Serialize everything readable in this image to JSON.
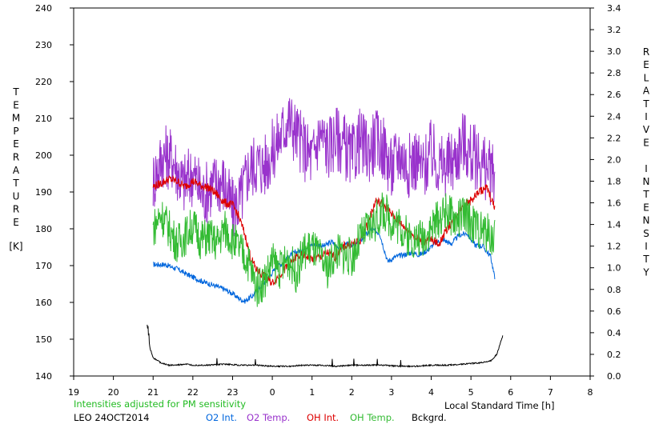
{
  "chart_data": {
    "type": "line",
    "left_axis": {
      "title": "TEMPERATURE",
      "unit": "[K]",
      "ylim": [
        140,
        240
      ],
      "ticks": [
        "140",
        "150",
        "160",
        "170",
        "180",
        "190",
        "200",
        "210",
        "220",
        "230",
        "240"
      ]
    },
    "right_axis": {
      "title": "RELATIVE INTENSITY",
      "ylim": [
        0.0,
        3.4
      ],
      "ticks": [
        "0.0",
        "0.2",
        "0.4",
        "0.6",
        "0.8",
        "1.0",
        "1.2",
        "1.4",
        "1.6",
        "1.8",
        "2.0",
        "2.2",
        "2.4",
        "2.6",
        "2.8",
        "3.0",
        "3.2",
        "3.4"
      ]
    },
    "x_axis": {
      "label": "Local Standard Time [h]",
      "ticks": [
        "19",
        "20",
        "21",
        "22",
        "23",
        "0",
        "1",
        "2",
        "3",
        "4",
        "5",
        "6",
        "7",
        "8"
      ]
    },
    "note": "Intensities adjusted for PM sensitivity",
    "station": "LEO 24OCT2014",
    "grid": false,
    "series": [
      {
        "name": "O2 Int.",
        "axis": "right",
        "color": "#0066dd",
        "x": [
          21.0,
          21.3,
          21.6,
          21.9,
          22.2,
          22.5,
          22.8,
          23.0,
          23.15,
          23.3,
          23.5,
          23.7,
          23.9,
          24.1,
          24.3,
          24.5,
          24.7,
          24.9,
          25.1,
          25.3,
          25.5,
          25.7,
          25.9,
          26.1,
          26.3,
          26.5,
          26.7,
          26.9,
          27.1,
          27.3,
          27.5,
          27.7,
          27.9,
          28.1,
          28.3,
          28.5,
          28.7,
          28.9,
          29.1,
          29.3,
          29.5,
          29.6
        ],
        "y": [
          1.03,
          1.03,
          0.99,
          0.93,
          0.88,
          0.84,
          0.8,
          0.76,
          0.72,
          0.69,
          0.74,
          0.82,
          0.91,
          1.0,
          1.06,
          1.13,
          1.16,
          1.2,
          1.22,
          1.2,
          1.24,
          1.18,
          1.22,
          1.21,
          1.28,
          1.36,
          1.32,
          1.06,
          1.1,
          1.12,
          1.14,
          1.12,
          1.16,
          1.23,
          1.26,
          1.22,
          1.3,
          1.32,
          1.21,
          1.2,
          1.1,
          0.9
        ]
      },
      {
        "name": "O2 Temp.",
        "axis": "left",
        "color": "#9933cc",
        "x": [
          21.0,
          21.25,
          21.5,
          21.75,
          22.0,
          22.25,
          22.5,
          22.75,
          23.0,
          23.2,
          23.4,
          23.6,
          23.8,
          24.0,
          24.2,
          24.4,
          24.6,
          24.8,
          25.0,
          25.2,
          25.4,
          25.6,
          25.8,
          26.0,
          26.2,
          26.4,
          26.6,
          26.8,
          27.0,
          27.2,
          27.4,
          27.6,
          27.8,
          28.0,
          28.2,
          28.4,
          28.6,
          28.8,
          29.0,
          29.2,
          29.4,
          29.6
        ],
        "y": [
          193,
          200,
          199,
          192,
          195,
          189,
          192,
          193,
          185,
          188,
          196,
          198,
          197,
          201,
          205,
          210,
          206,
          202,
          199,
          206,
          202,
          205,
          203,
          199,
          204,
          201,
          204,
          202,
          196,
          201,
          197,
          199,
          196,
          201,
          197,
          197,
          199,
          204,
          200,
          199,
          196,
          194
        ]
      },
      {
        "name": "OH Int.",
        "axis": "right",
        "color": "#dd0000",
        "x": [
          21.0,
          21.2,
          21.4,
          21.6,
          21.8,
          22.0,
          22.2,
          22.4,
          22.6,
          22.8,
          23.0,
          23.15,
          23.3,
          23.45,
          23.6,
          23.8,
          24.0,
          24.2,
          24.4,
          24.6,
          24.8,
          25.0,
          25.2,
          25.4,
          25.6,
          25.8,
          26.0,
          26.2,
          26.4,
          26.6,
          26.8,
          27.0,
          27.2,
          27.4,
          27.6,
          27.8,
          28.0,
          28.2,
          28.4,
          28.6,
          28.8,
          29.0,
          29.2,
          29.4,
          29.6
        ],
        "y": [
          1.75,
          1.78,
          1.82,
          1.8,
          1.75,
          1.8,
          1.76,
          1.74,
          1.68,
          1.6,
          1.58,
          1.48,
          1.32,
          1.1,
          0.98,
          0.92,
          0.86,
          0.94,
          1.02,
          1.1,
          1.12,
          1.08,
          1.1,
          1.14,
          1.1,
          1.2,
          1.22,
          1.24,
          1.4,
          1.62,
          1.58,
          1.5,
          1.42,
          1.35,
          1.28,
          1.24,
          1.26,
          1.22,
          1.36,
          1.46,
          1.58,
          1.62,
          1.7,
          1.74,
          1.55
        ]
      },
      {
        "name": "OH Temp.",
        "axis": "left",
        "color": "#33bb33",
        "x": [
          21.0,
          21.2,
          21.4,
          21.6,
          21.8,
          22.0,
          22.2,
          22.4,
          22.6,
          22.8,
          23.0,
          23.2,
          23.4,
          23.6,
          23.8,
          24.0,
          24.2,
          24.4,
          24.6,
          24.8,
          25.0,
          25.2,
          25.4,
          25.6,
          25.8,
          26.0,
          26.2,
          26.4,
          26.6,
          26.8,
          27.0,
          27.2,
          27.4,
          27.6,
          27.8,
          28.0,
          28.2,
          28.4,
          28.6,
          28.8,
          29.0,
          29.2,
          29.4,
          29.6
        ],
        "y": [
          180,
          184,
          180,
          176,
          178,
          181,
          177,
          178,
          176,
          180,
          177,
          174,
          171,
          164,
          166,
          171,
          169,
          172,
          168,
          174,
          175,
          172,
          169,
          174,
          173,
          172,
          177,
          180,
          182,
          185,
          182,
          181,
          178,
          177,
          178,
          180,
          183,
          185,
          182,
          184,
          182,
          180,
          179,
          177
        ]
      },
      {
        "name": "Bckgrd.",
        "axis": "right",
        "color": "#000000",
        "x": [
          20.85,
          20.92,
          21.0,
          21.2,
          21.4,
          21.6,
          21.8,
          22.0,
          22.4,
          22.8,
          23.2,
          23.6,
          24.0,
          24.4,
          24.8,
          25.2,
          25.6,
          26.0,
          26.4,
          26.8,
          27.2,
          27.6,
          28.0,
          28.4,
          28.8,
          29.2,
          29.5,
          29.65,
          29.8
        ],
        "y": [
          0.47,
          0.26,
          0.17,
          0.12,
          0.1,
          0.1,
          0.11,
          0.1,
          0.1,
          0.11,
          0.1,
          0.1,
          0.09,
          0.09,
          0.1,
          0.1,
          0.09,
          0.1,
          0.1,
          0.1,
          0.09,
          0.09,
          0.1,
          0.1,
          0.11,
          0.12,
          0.14,
          0.2,
          0.37
        ]
      }
    ]
  }
}
